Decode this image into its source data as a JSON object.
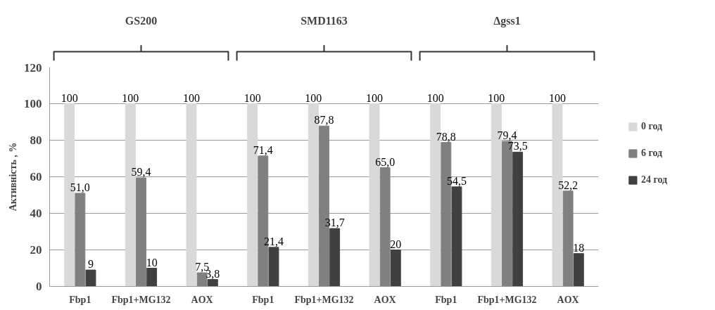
{
  "chart_data": {
    "type": "bar",
    "ylabel": "Активність , %",
    "categories": [
      "Fbp1",
      "Fbp1+MG132",
      "AOX",
      "Fbp1",
      "Fbp1+MG132",
      "AOX",
      "Fbp1",
      "Fbp1+MG132",
      "AOX"
    ],
    "series": [
      {
        "name": "0 год",
        "color": "#d9d9d9",
        "values": [
          100,
          100,
          100,
          100,
          100,
          100,
          100,
          100,
          100
        ],
        "value_labels": [
          "100",
          "100",
          "100",
          "100",
          "100",
          "100",
          "100",
          "100",
          "100"
        ]
      },
      {
        "name": "6 год",
        "color": "#808080",
        "values": [
          51.0,
          59.4,
          7.5,
          71.4,
          87.8,
          65.0,
          78.8,
          79.4,
          52.2
        ],
        "value_labels": [
          "51,0",
          "59,4",
          "7,5",
          "71,4",
          "87,8",
          "65,0",
          "78,8",
          "79,4",
          "52,2"
        ]
      },
      {
        "name": "24 год",
        "color": "#404040",
        "values": [
          9,
          10,
          3.8,
          21.4,
          31.7,
          20,
          54.5,
          73.5,
          18
        ],
        "value_labels": [
          "9",
          "10",
          "3,8",
          "21,4",
          "31,7",
          "20",
          "54,5",
          "73,5",
          "18"
        ]
      }
    ],
    "annotations": [
      "GS200",
      "SMD1163",
      "Δgss1"
    ],
    "ylim": [
      0,
      120
    ],
    "yticks": [
      0,
      20,
      40,
      60,
      80,
      100,
      120
    ],
    "grid": "y",
    "legend": "right"
  }
}
